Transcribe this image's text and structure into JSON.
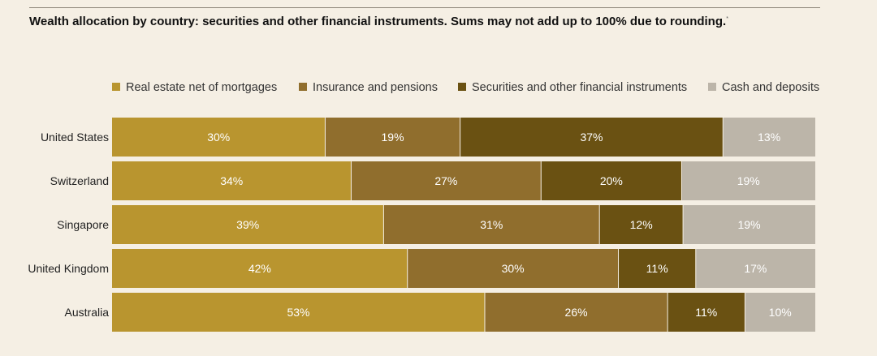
{
  "title": "Wealth allocation by country: securities and other financial instruments. Sums may not add up to 100% due to rounding.",
  "title_footnote_mark": "*",
  "chart_data": {
    "type": "bar",
    "orientation": "horizontal",
    "stacked": true,
    "title": "Wealth allocation by country: securities and other financial instruments. Sums may not add up to 100% due to rounding.",
    "categories": [
      "United States",
      "Switzerland",
      "Singapore",
      "United Kingdom",
      "Australia"
    ],
    "series": [
      {
        "name": "Real estate net of mortgages",
        "color": "#b9952f",
        "values": [
          30,
          34,
          39,
          42,
          53
        ]
      },
      {
        "name": "Insurance and pensions",
        "color": "#906e2d",
        "values": [
          19,
          27,
          31,
          30,
          26
        ]
      },
      {
        "name": "Securities and other financial instruments",
        "color": "#6a5112",
        "values": [
          37,
          20,
          12,
          11,
          11
        ]
      },
      {
        "name": "Cash and deposits",
        "color": "#bcb5a9",
        "values": [
          13,
          19,
          19,
          17,
          10
        ]
      }
    ],
    "value_suffix": "%",
    "legend_position": "top",
    "xlim": [
      0,
      100
    ],
    "grid": false
  }
}
